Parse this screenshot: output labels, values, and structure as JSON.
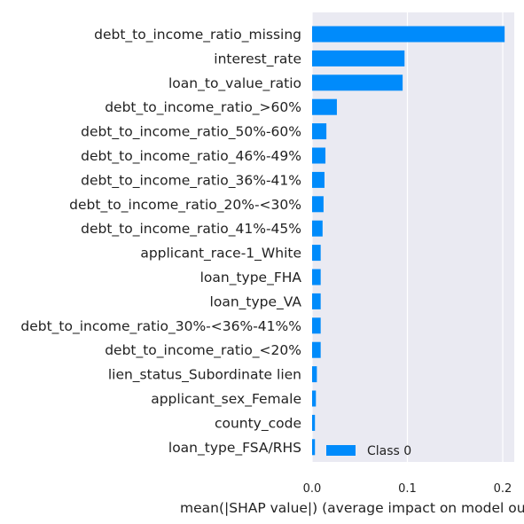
{
  "chart_data": {
    "type": "bar",
    "orientation": "horizontal",
    "categories": [
      "debt_to_income_ratio_missing",
      "interest_rate",
      "loan_to_value_ratio",
      "debt_to_income_ratio_>60%",
      "debt_to_income_ratio_50%-60%",
      "debt_to_income_ratio_46%-49%",
      "debt_to_income_ratio_36%-41%",
      "debt_to_income_ratio_20%-<30%",
      "debt_to_income_ratio_41%-45%",
      "applicant_race-1_White",
      "loan_type_FHA",
      "loan_type_VA",
      "debt_to_income_ratio_30%-<36%-41%%",
      "debt_to_income_ratio_<20%",
      "lien_status_Subordinate lien",
      "applicant_sex_Female",
      "county_code",
      "loan_type_FSA/RHS"
    ],
    "series": [
      {
        "name": "Class 0",
        "color": "#008bfb",
        "values": [
          0.202,
          0.097,
          0.095,
          0.026,
          0.015,
          0.014,
          0.013,
          0.012,
          0.011,
          0.009,
          0.009,
          0.009,
          0.009,
          0.009,
          0.005,
          0.004,
          0.003,
          0.003
        ]
      }
    ],
    "xlabel": "mean(|SHAP value|) (average impact on model output magnitude)",
    "xlim": [
      0,
      0.212
    ],
    "xticks": [
      "0.0",
      "0.1",
      "0.2"
    ],
    "xtick_values": [
      0.0,
      0.1,
      0.2
    ],
    "grid": true,
    "legend_position": "bottom-right",
    "colors": {
      "background": "#eaeaf2",
      "grid": "#ffffff",
      "bar": "#008bfb"
    }
  }
}
